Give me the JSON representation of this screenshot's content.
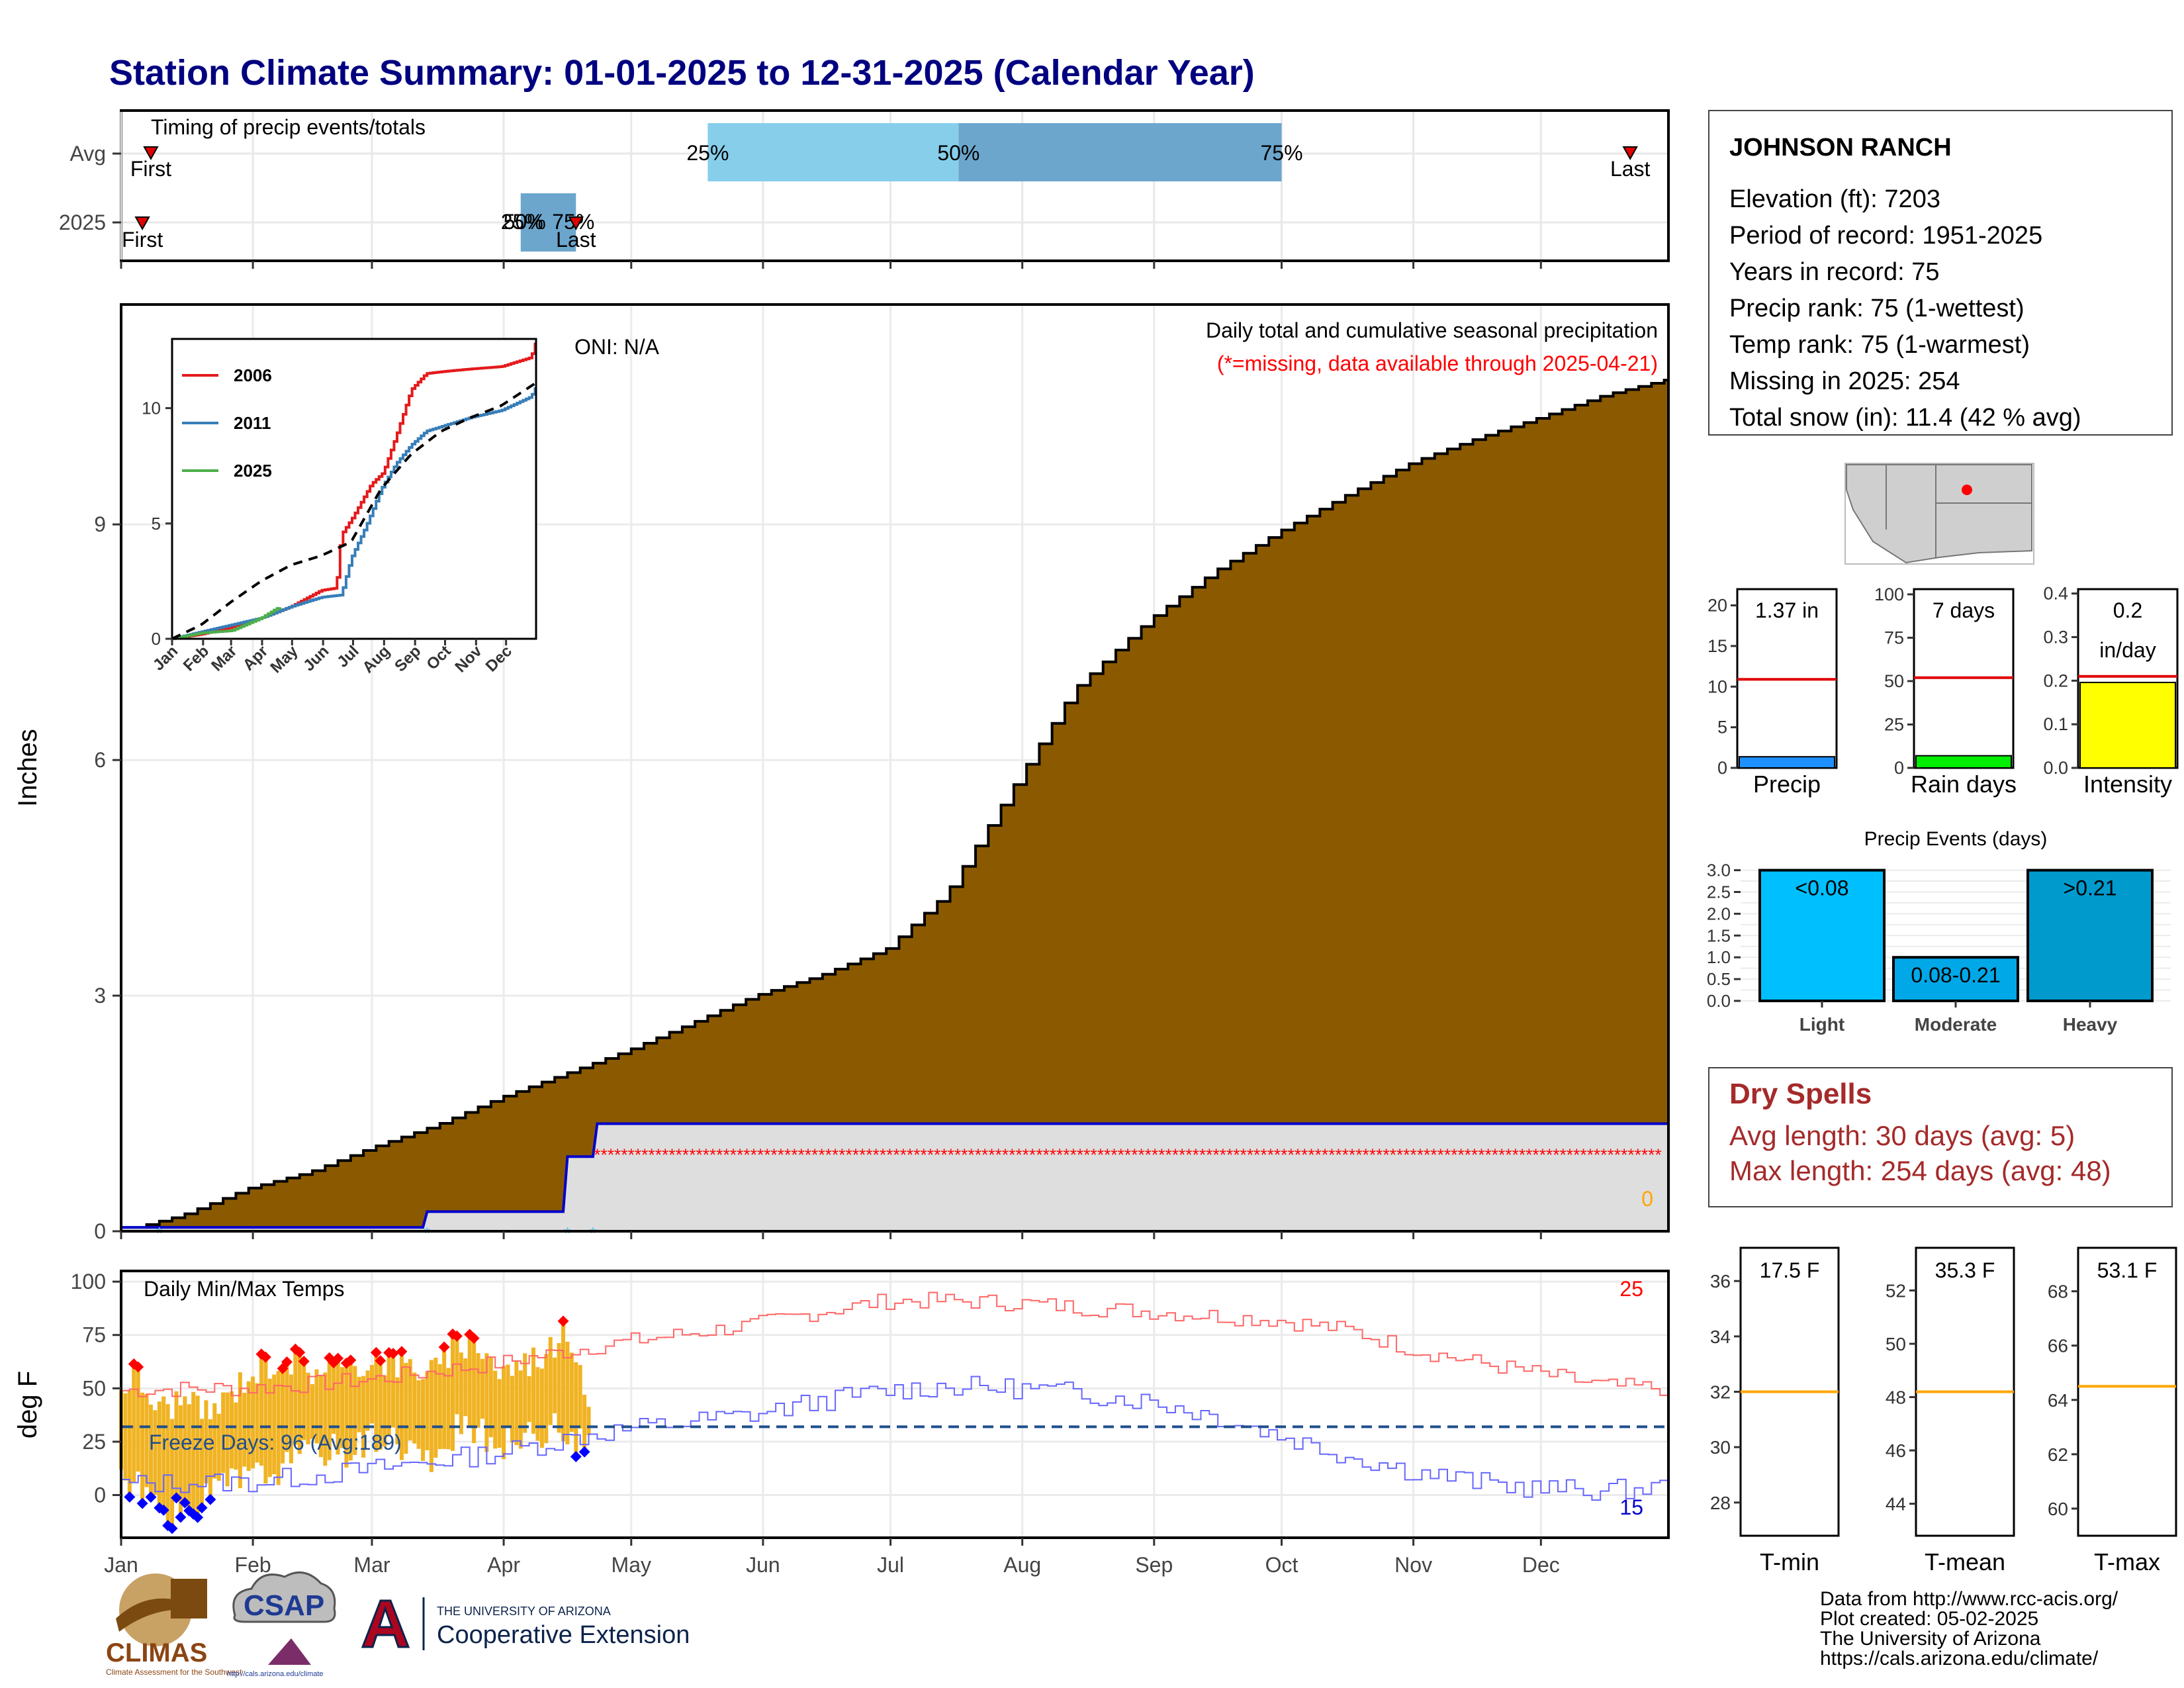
{
  "title": "Station Climate Summary: 01-01-2025 to 12-31-2025 (Calendar Year)",
  "colors": {
    "title": "#000080",
    "cumulative_fill": "#8B5A00",
    "avg_cum_fill": "#DEDEDE",
    "avg_cum_line": "#0000CC",
    "missing": "#FF0000",
    "band_light": "#87CEEB",
    "band_dark": "#6CA6CD",
    "temp_bar": "#F0B323",
    "max_temp_line": "#FF6666",
    "min_temp_line": "#6666FF",
    "freeze_line": "#1F4E8C",
    "dry_spell_text": "#A52A2A",
    "precip_bar": "#1E90FF",
    "raindays_bar": "#00EE00",
    "intensity_bar": "#FFFF00",
    "event_light": "#00BFFF",
    "event_moderate": "#00A8E8",
    "event_heavy": "#009ACD",
    "ref_line": "#E00000",
    "temp_ref_line": "#FFA500"
  },
  "months": [
    "Jan",
    "Feb",
    "Mar",
    "Apr",
    "May",
    "Jun",
    "Jul",
    "Aug",
    "Sep",
    "Oct",
    "Nov",
    "Dec"
  ],
  "timing_panel": {
    "title": "Timing of precip events/totals",
    "row_labels": [
      "Avg",
      "2025"
    ],
    "first_label": "First",
    "last_label": "Last",
    "avg_first_doy": 8,
    "avg_last_doy": 356,
    "avg_p25_doy": 139,
    "avg_p50_doy": 198,
    "avg_p75_doy": 274,
    "y2025_first_doy": 6,
    "y2025_last_doy": 108,
    "y2025_p25_doy": 95,
    "y2025_p75_doy": 108,
    "p25_label": "25%",
    "p50_label": "50%",
    "p75_label": "75%",
    "y2025_overlap_label": "25%",
    "y2025_p50_overlap_label": "50%"
  },
  "precip_panel": {
    "ylabel": "Inches",
    "yticks": [
      0,
      3,
      6,
      9
    ],
    "ymax": 11.8,
    "oni_label": "ONI: N/A",
    "legend_title": "Daily total and cumulative seasonal precipitation",
    "missing_note": "(*=missing, data available through 2025-04-21)",
    "corner_value": "0"
  },
  "inset": {
    "yticks": [
      0,
      5,
      10
    ],
    "ymax": 13,
    "month_ticks": [
      "Jan",
      "Feb",
      "Mar",
      "Apr",
      "May",
      "Jun",
      "Jul",
      "Aug",
      "Sep",
      "Oct",
      "Nov",
      "Dec"
    ],
    "series_labels": [
      "2006",
      "2011",
      "2025"
    ],
    "series_colors": [
      "#E41A1C",
      "#377EB8",
      "#4DAF4A"
    ]
  },
  "temp_panel": {
    "ylabel": "deg F",
    "title": "Daily Min/Max Temps",
    "yticks": [
      0,
      25,
      50,
      75,
      100
    ],
    "freeze_label": "Freeze Days: 96 (Avg:189)",
    "freeze_temp": 32,
    "count_high": "25",
    "count_low": "15"
  },
  "station": {
    "name": "JOHNSON RANCH",
    "lines": [
      "Elevation (ft): 7203",
      "Period of record: 1951-2025",
      "Years in record: 75",
      "Precip rank: 75 (1-wettest)",
      "Temp rank: 75 (1-warmest)",
      "Missing in 2025: 254",
      "Total snow (in): 11.4 (42 % avg)"
    ]
  },
  "mini_bars": [
    {
      "label": "Precip",
      "value_text": "1.37 in",
      "value": 1.37,
      "avg": 10.9,
      "ymax": 22,
      "yticks": [
        0,
        5,
        10,
        15,
        20
      ]
    },
    {
      "label": "Rain days",
      "value_text": "7 days",
      "value": 7,
      "avg": 52,
      "ymax": 103,
      "yticks": [
        0,
        25,
        50,
        75,
        100
      ]
    },
    {
      "label": "Intensity",
      "value_text": "0.2",
      "value_text2": "in/day",
      "value": 0.196,
      "avg": 0.21,
      "ymax": 0.41,
      "yticks": [
        "0.0",
        "0.1",
        "0.2",
        "0.3",
        "0.4"
      ]
    }
  ],
  "events": {
    "title": "Precip Events (days)",
    "categories": [
      "Light",
      "Moderate",
      "Heavy"
    ],
    "values": [
      3,
      1,
      3
    ],
    "bar_labels": [
      "<0.08",
      "0.08-0.21",
      ">0.21"
    ],
    "yticks": [
      "0.0",
      "0.5",
      "1.0",
      "1.5",
      "2.0",
      "2.5",
      "3.0"
    ]
  },
  "dry_spells": {
    "title": "Dry Spells",
    "avg": "Avg length: 30 days (avg: 5)",
    "max": "Max length: 254 days (avg: 48)"
  },
  "temp_summaries": [
    {
      "label": "T-min",
      "value_text": "17.5 F",
      "ref": 32,
      "ymin": 26.8,
      "ymax": 37.2,
      "yticks": [
        28,
        30,
        32,
        34,
        36
      ]
    },
    {
      "label": "T-mean",
      "value_text": "35.3 F",
      "ref": 48.2,
      "ymin": 42.8,
      "ymax": 53.6,
      "yticks": [
        44,
        46,
        48,
        50,
        52
      ]
    },
    {
      "label": "T-max",
      "value_text": "53.1 F",
      "ref": 64.5,
      "ymin": 59,
      "ymax": 69.6,
      "yticks": [
        60,
        62,
        64,
        66,
        68
      ]
    }
  ],
  "footer": {
    "lines": [
      "Data from http://www.rcc-acis.org/",
      "Plot created: 05-02-2025",
      "The University of Arizona",
      "https://cals.arizona.edu/climate/"
    ],
    "climas": "CLIMAS",
    "climas_sub": "Climate Assessment for the Southwest",
    "csap": "CSAP",
    "csap_url": "http://cals.arizona.edu/climate",
    "ua_line1": "THE UNIVERSITY OF ARIZONA",
    "ua_line2": "Cooperative Extension"
  },
  "chart_data": [
    {
      "type": "area",
      "title": "Daily total and cumulative seasonal precipitation",
      "ylabel": "Inches",
      "ylim": [
        0,
        11.8
      ],
      "x_unit": "day of year",
      "series": [
        {
          "name": "Average cumulative precipitation",
          "x": [
            1,
            15,
            31,
            45,
            59,
            75,
            90,
            105,
            120,
            135,
            150,
            165,
            181,
            195,
            210,
            225,
            243,
            258,
            273,
            290,
            305,
            320,
            334,
            350,
            365
          ],
          "values": [
            0,
            0.2,
            0.55,
            0.75,
            1.05,
            1.35,
            1.7,
            2.0,
            2.3,
            2.65,
            3.0,
            3.25,
            3.6,
            4.3,
            5.6,
            6.9,
            7.8,
            8.4,
            8.9,
            9.4,
            9.8,
            10.1,
            10.35,
            10.65,
            10.85
          ]
        },
        {
          "name": "2025 cumulative precipitation",
          "x": [
            1,
            72,
            73,
            105,
            106,
            112,
            113,
            365
          ],
          "values": [
            0.05,
            0.05,
            0.25,
            0.25,
            0.95,
            0.95,
            1.37,
            1.37
          ]
        }
      ],
      "missing_from": "2025-04-21",
      "missing_marker_value": 1.0
    },
    {
      "type": "line",
      "title": "",
      "ylim": [
        0,
        13
      ],
      "series": [
        {
          "name": "2006",
          "x": [
            1,
            30,
            60,
            90,
            120,
            150,
            165,
            170,
            182,
            200,
            212,
            225,
            240,
            255,
            275,
            300,
            330,
            360,
            365
          ],
          "values": [
            0,
            0.2,
            0.5,
            0.9,
            1.4,
            2.1,
            2.2,
            4.5,
            5.3,
            6.7,
            7.2,
            8.8,
            10.8,
            11.5,
            11.6,
            11.7,
            11.8,
            12.2,
            13.0
          ]
        },
        {
          "name": "2011",
          "x": [
            1,
            30,
            60,
            90,
            120,
            150,
            170,
            180,
            195,
            210,
            225,
            240,
            255,
            270,
            285,
            300,
            330,
            360,
            365
          ],
          "values": [
            0,
            0.3,
            0.6,
            0.9,
            1.4,
            1.8,
            1.9,
            3.5,
            4.9,
            6.5,
            7.6,
            8.4,
            9.0,
            9.2,
            9.4,
            9.6,
            9.9,
            10.5,
            11.0
          ]
        },
        {
          "name": "2025",
          "x": [
            1,
            30,
            60,
            90,
            105,
            111
          ],
          "values": [
            0,
            0.25,
            0.35,
            0.9,
            1.3,
            1.4
          ]
        },
        {
          "name": "Average",
          "x": [
            1,
            30,
            60,
            90,
            120,
            150,
            180,
            210,
            240,
            270,
            300,
            330,
            365
          ],
          "values": [
            0,
            0.6,
            1.6,
            2.5,
            3.2,
            3.6,
            4.2,
            6.5,
            8.0,
            9.0,
            9.6,
            10.1,
            11.1
          ]
        }
      ]
    },
    {
      "type": "line",
      "title": "Daily Min/Max Temps",
      "ylabel": "deg F",
      "ylim": [
        -20,
        105
      ],
      "x_unit": "day of year",
      "series": [
        {
          "name": "Average max",
          "x": [
            1,
            20,
            31,
            59,
            90,
            110,
            120,
            150,
            165,
            181,
            195,
            212,
            225,
            243,
            258,
            273,
            290,
            305,
            320,
            334,
            350,
            365
          ],
          "values": [
            49,
            50,
            50,
            54,
            62,
            69,
            72,
            80,
            86,
            91,
            91,
            90,
            88,
            86,
            84,
            82,
            77,
            68,
            62,
            57,
            51,
            50
          ]
        },
        {
          "name": "Average min",
          "x": [
            1,
            20,
            31,
            59,
            90,
            110,
            120,
            150,
            165,
            181,
            195,
            212,
            225,
            243,
            258,
            273,
            290,
            305,
            320,
            334,
            350,
            365
          ],
          "values": [
            5,
            6,
            6,
            12,
            20,
            28,
            31,
            38,
            44,
            49,
            51,
            50,
            48,
            44,
            37,
            28,
            18,
            11,
            6,
            3,
            2,
            4
          ]
        },
        {
          "name": "2025 max",
          "x": [
            1,
            4,
            10,
            15,
            20,
            25,
            30,
            35,
            40,
            45,
            50,
            55,
            60,
            65,
            70,
            75,
            80,
            85,
            90,
            95,
            100,
            105,
            108,
            111
          ],
          "values": [
            50,
            57,
            40,
            45,
            38,
            43,
            55,
            61,
            65,
            58,
            62,
            56,
            66,
            62,
            60,
            58,
            70,
            72,
            58,
            61,
            66,
            74,
            70,
            45
          ]
        },
        {
          "name": "2025 min",
          "x": [
            1,
            4,
            10,
            15,
            20,
            25,
            30,
            35,
            40,
            45,
            50,
            55,
            60,
            65,
            70,
            75,
            80,
            85,
            90,
            95,
            100,
            105,
            108,
            111
          ],
          "values": [
            10,
            5,
            -5,
            -10,
            -4,
            5,
            8,
            10,
            14,
            20,
            22,
            20,
            28,
            26,
            22,
            12,
            30,
            29,
            24,
            26,
            30,
            31,
            25,
            24
          ]
        }
      ],
      "freeze_days": 96,
      "freeze_days_avg": 189
    },
    {
      "type": "bar",
      "title": "Precip Events (days)",
      "categories": [
        "Light",
        "Moderate",
        "Heavy"
      ],
      "values": [
        3,
        1,
        3
      ]
    }
  ]
}
